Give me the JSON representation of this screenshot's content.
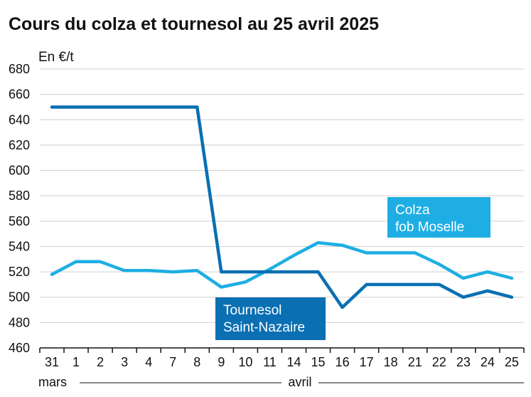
{
  "chart_data": {
    "type": "line",
    "title": "Cours du colza et tournesol au 25 avril 2025",
    "ylabel": "En €/t",
    "ylim": [
      460,
      680
    ],
    "yticks": [
      460,
      480,
      500,
      520,
      540,
      560,
      580,
      600,
      620,
      640,
      660,
      680
    ],
    "grid": true,
    "categories": [
      "31",
      "1",
      "2",
      "3",
      "4",
      "7",
      "8",
      "9",
      "10",
      "11",
      "14",
      "15",
      "16",
      "17",
      "18",
      "21",
      "22",
      "23",
      "24",
      "25"
    ],
    "periods": [
      {
        "label": "mars",
        "start": 0,
        "end": 0
      },
      {
        "label": "avril",
        "start": 1,
        "end": 19
      }
    ],
    "series": [
      {
        "name": "Colza\nfob Moselle",
        "color": "#1eaee3",
        "values": [
          518,
          528,
          528,
          521,
          521,
          520,
          521,
          508,
          512,
          522,
          533,
          543,
          541,
          535,
          535,
          535,
          526,
          515,
          520,
          515
        ]
      },
      {
        "name": "Tournesol\nSaint-Nazaire",
        "color": "#0a6fb3",
        "values": [
          650,
          650,
          650,
          650,
          650,
          650,
          650,
          520,
          520,
          520,
          520,
          520,
          492,
          510,
          510,
          510,
          510,
          500,
          505,
          500
        ]
      }
    ]
  }
}
